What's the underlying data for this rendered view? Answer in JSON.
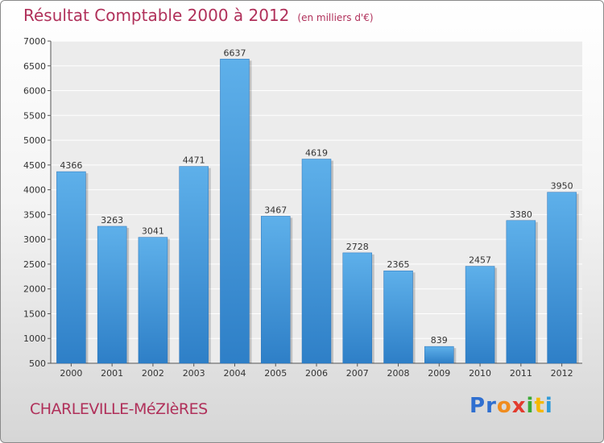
{
  "header": {
    "title": "Résultat Comptable 2000 à 2012",
    "unit": "(en milliers d'€)"
  },
  "footer": {
    "city": "CHARLEVILLE-MéZIèRES"
  },
  "logo": {
    "letters": [
      "P",
      "r",
      "o",
      "x",
      "i",
      "t",
      "i"
    ],
    "colors": [
      "#2f6fd0",
      "#2f6fd0",
      "#f08c1e",
      "#e23b2e",
      "#3aaa35",
      "#f5b800",
      "#2f9ad8"
    ]
  },
  "chart_data": {
    "type": "bar",
    "title": "Résultat Comptable 2000 à 2012",
    "subtitle": "(en milliers d'€)",
    "xlabel": "",
    "ylabel": "",
    "categories": [
      "2000",
      "2001",
      "2002",
      "2003",
      "2004",
      "2005",
      "2006",
      "2007",
      "2008",
      "2009",
      "2010",
      "2011",
      "2012"
    ],
    "values": [
      4366,
      3263,
      3041,
      4471,
      6637,
      3467,
      4619,
      2728,
      2365,
      839,
      2457,
      3380,
      3950
    ],
    "ylim": [
      500,
      7000
    ],
    "yticks": [
      500,
      1000,
      1500,
      2000,
      2500,
      3000,
      3500,
      4000,
      4500,
      5000,
      5500,
      6000,
      6500,
      7000
    ],
    "grid": true,
    "bar_color": "#4a9de0"
  }
}
